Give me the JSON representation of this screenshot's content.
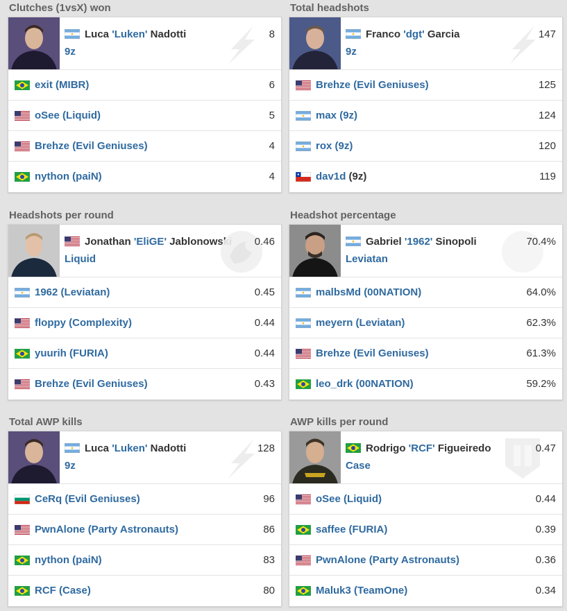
{
  "colors": {
    "link": "#2f6aa0",
    "text": "#333333",
    "title": "#626262",
    "bg": "#e3e3e3"
  },
  "sections": [
    {
      "title": "Clutches (1vsX) won",
      "top": {
        "first": "Luca",
        "nick": "'Luken'",
        "last": "Nadotti",
        "team": "9z",
        "value": "8",
        "flag": "AR",
        "watermark": "9z-logo-icon"
      },
      "rows": [
        {
          "player": "exit",
          "team": "(MIBR)",
          "value": "6",
          "flag": "BR",
          "team_link": true
        },
        {
          "player": "oSee",
          "team": "(Liquid)",
          "value": "5",
          "flag": "US",
          "team_link": true
        },
        {
          "player": "Brehze",
          "team": "(Evil Geniuses)",
          "value": "4",
          "flag": "US",
          "team_link": true
        },
        {
          "player": "nython",
          "team": "(paiN)",
          "value": "4",
          "flag": "BR",
          "team_link": true
        }
      ]
    },
    {
      "title": "Total headshots",
      "top": {
        "first": "Franco",
        "nick": "'dgt'",
        "last": "Garcia",
        "team": "9z",
        "value": "147",
        "flag": "AR",
        "watermark": "9z-logo-icon"
      },
      "rows": [
        {
          "player": "Brehze",
          "team": "(Evil Geniuses)",
          "value": "125",
          "flag": "US",
          "team_link": true
        },
        {
          "player": "max",
          "team": "(9z)",
          "value": "124",
          "flag": "AR",
          "team_link": true
        },
        {
          "player": "rox",
          "team": "(9z)",
          "value": "120",
          "flag": "AR",
          "team_link": true
        },
        {
          "player": "dav1d",
          "team": "(9z)",
          "value": "119",
          "flag": "CL",
          "team_link": false
        }
      ]
    },
    {
      "title": "Headshots per round",
      "top": {
        "first": "Jonathan",
        "nick": "'EliGE'",
        "last": "Jablonowski",
        "team": "Liquid",
        "value": "0.46",
        "flag": "US",
        "watermark": "liquid-logo-icon"
      },
      "rows": [
        {
          "player": "1962",
          "team": "(Leviatan)",
          "value": "0.45",
          "flag": "AR",
          "team_link": true
        },
        {
          "player": "floppy",
          "team": "(Complexity)",
          "value": "0.44",
          "flag": "US",
          "team_link": true
        },
        {
          "player": "yuurih",
          "team": "(FURIA)",
          "value": "0.44",
          "flag": "BR",
          "team_link": true
        },
        {
          "player": "Brehze",
          "team": "(Evil Geniuses)",
          "value": "0.43",
          "flag": "US",
          "team_link": true
        }
      ]
    },
    {
      "title": "Headshot percentage",
      "top": {
        "first": "Gabriel",
        "nick": "'1962'",
        "last": "Sinopoli",
        "team": "Leviatan",
        "value": "70.4%",
        "flag": "AR",
        "watermark": "leviatan-logo-icon"
      },
      "rows": [
        {
          "player": "malbsMd",
          "team": "(00NATION)",
          "value": "64.0%",
          "flag": "AR",
          "team_link": true
        },
        {
          "player": "meyern",
          "team": "(Leviatan)",
          "value": "62.3%",
          "flag": "AR",
          "team_link": true
        },
        {
          "player": "Brehze",
          "team": "(Evil Geniuses)",
          "value": "61.3%",
          "flag": "US",
          "team_link": true
        },
        {
          "player": "leo_drk",
          "team": "(00NATION)",
          "value": "59.2%",
          "flag": "BR",
          "team_link": true
        }
      ]
    },
    {
      "title": "Total AWP kills",
      "top": {
        "first": "Luca",
        "nick": "'Luken'",
        "last": "Nadotti",
        "team": "9z",
        "value": "128",
        "flag": "AR",
        "watermark": "9z-logo-icon"
      },
      "rows": [
        {
          "player": "CeRq",
          "team": "(Evil Geniuses)",
          "value": "96",
          "flag": "BG",
          "team_link": true
        },
        {
          "player": "PwnAlone",
          "team": "(Party Astronauts)",
          "value": "86",
          "flag": "US",
          "team_link": true
        },
        {
          "player": "nython",
          "team": "(paiN)",
          "value": "83",
          "flag": "BR",
          "team_link": true
        },
        {
          "player": "RCF",
          "team": "(Case)",
          "value": "80",
          "flag": "BR",
          "team_link": true
        }
      ]
    },
    {
      "title": "AWP kills per round",
      "top": {
        "first": "Rodrigo",
        "nick": "'RCF'",
        "last": "Figueiredo",
        "team": "Case",
        "value": "0.47",
        "flag": "BR",
        "watermark": "case-logo-icon"
      },
      "rows": [
        {
          "player": "oSee",
          "team": "(Liquid)",
          "value": "0.44",
          "flag": "US",
          "team_link": true
        },
        {
          "player": "saffee",
          "team": "(FURIA)",
          "value": "0.39",
          "flag": "BR",
          "team_link": true
        },
        {
          "player": "PwnAlone",
          "team": "(Party Astronauts)",
          "value": "0.36",
          "flag": "US",
          "team_link": true
        },
        {
          "player": "Maluk3",
          "team": "(TeamOne)",
          "value": "0.34",
          "flag": "BR",
          "team_link": true
        }
      ]
    }
  ]
}
